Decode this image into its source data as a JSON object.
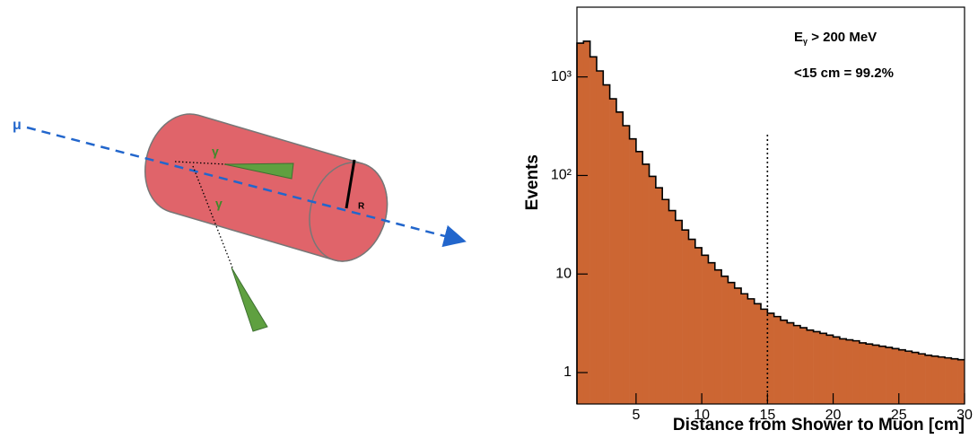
{
  "diagram": {
    "labels": {
      "muon": "μ",
      "gamma1": "γ",
      "gamma2": "γ",
      "radius": "R"
    }
  },
  "chart_data": {
    "type": "histogram",
    "x_label": "Distance from Shower to Muon [cm]",
    "y_label": "Events",
    "annotations": [
      {
        "main": "E",
        "sub": "γ",
        "tail": " > 200 MeV"
      },
      {
        "main": "<15 cm = 99.2%"
      }
    ],
    "vline_x": 15,
    "log_y": true,
    "color": "#cc6633",
    "edge_color": "#000000",
    "bins": [
      0.5,
      1,
      1.5,
      2,
      2.5,
      3,
      3.5,
      4,
      4.5,
      5,
      5.5,
      6,
      6.5,
      7,
      7.5,
      8,
      8.5,
      9,
      9.5,
      10,
      10.5,
      11,
      11.5,
      12,
      12.5,
      13,
      13.5,
      14,
      14.5,
      15,
      15.5,
      16,
      16.5,
      17,
      17.5,
      18,
      18.5,
      19,
      19.5,
      20,
      20.5,
      21,
      21.5,
      22,
      22.5,
      23,
      23.5,
      24,
      24.5,
      25,
      25.5,
      26,
      26.5,
      27,
      27.5,
      28,
      28.5,
      29,
      29.5,
      30
    ],
    "values": [
      2200,
      2300,
      1600,
      1150,
      830,
      600,
      440,
      320,
      235,
      175,
      130,
      98,
      75,
      57,
      44,
      35,
      28,
      22.5,
      18.5,
      15.5,
      13,
      11,
      9.5,
      8.2,
      7.2,
      6.3,
      5.6,
      5.0,
      4.4,
      4.0,
      3.7,
      3.4,
      3.2,
      3.0,
      2.85,
      2.7,
      2.6,
      2.5,
      2.4,
      2.3,
      2.2,
      2.15,
      2.1,
      2.0,
      1.95,
      1.9,
      1.85,
      1.8,
      1.75,
      1.7,
      1.65,
      1.6,
      1.55,
      1.5,
      1.47,
      1.44,
      1.41,
      1.38,
      1.35
    ],
    "xlim": [
      0.5,
      30
    ],
    "ylim": [
      0.48,
      5100
    ],
    "xticks": [
      5,
      10,
      15,
      20,
      25,
      30
    ],
    "yticks": [
      1,
      10,
      {
        "value": 100,
        "label": "10²"
      },
      {
        "value": 1000,
        "label": "10³"
      }
    ]
  }
}
